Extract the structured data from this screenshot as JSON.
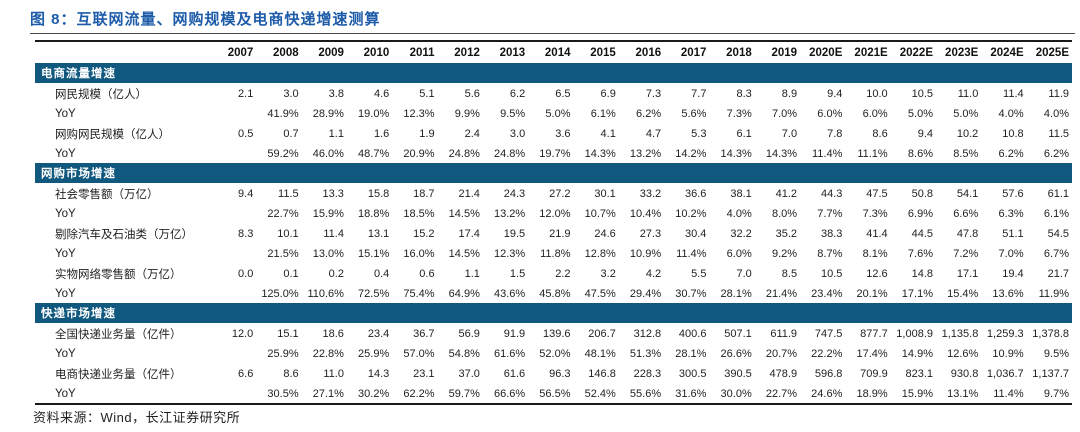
{
  "title": "图 8：互联网流量、网购规模及电商快递增速测算",
  "source": "资料来源：Wind，长江证券研究所",
  "colors": {
    "title_blue": "#1e5ca9",
    "section_band": "#11587f",
    "border": "#1a1a1a"
  },
  "chart_data": {
    "type": "table",
    "columns": [
      "2007",
      "2008",
      "2009",
      "2010",
      "2011",
      "2012",
      "2013",
      "2014",
      "2015",
      "2016",
      "2017",
      "2018",
      "2019",
      "2020E",
      "2021E",
      "2022E",
      "2023E",
      "2024E",
      "2025E"
    ],
    "sections": [
      {
        "name": "电商流量增速",
        "rows": [
          {
            "label": "网民规模（亿人）",
            "values": [
              "2.1",
              "3.0",
              "3.8",
              "4.6",
              "5.1",
              "5.6",
              "6.2",
              "6.5",
              "6.9",
              "7.3",
              "7.7",
              "8.3",
              "8.9",
              "9.4",
              "10.0",
              "10.5",
              "11.0",
              "11.4",
              "11.9"
            ]
          },
          {
            "label": "YoY",
            "values": [
              "",
              "41.9%",
              "28.9%",
              "19.0%",
              "12.3%",
              "9.9%",
              "9.5%",
              "5.0%",
              "6.1%",
              "6.2%",
              "5.6%",
              "7.3%",
              "7.0%",
              "6.0%",
              "6.0%",
              "5.0%",
              "5.0%",
              "4.0%",
              "4.0%"
            ]
          },
          {
            "label": "网购网民规模（亿人）",
            "values": [
              "0.5",
              "0.7",
              "1.1",
              "1.6",
              "1.9",
              "2.4",
              "3.0",
              "3.6",
              "4.1",
              "4.7",
              "5.3",
              "6.1",
              "7.0",
              "7.8",
              "8.6",
              "9.4",
              "10.2",
              "10.8",
              "11.5"
            ]
          },
          {
            "label": "YoY",
            "values": [
              "",
              "59.2%",
              "46.0%",
              "48.7%",
              "20.9%",
              "24.8%",
              "24.8%",
              "19.7%",
              "14.3%",
              "13.2%",
              "14.2%",
              "14.3%",
              "14.3%",
              "11.4%",
              "11.1%",
              "8.6%",
              "8.5%",
              "6.2%",
              "6.2%"
            ]
          }
        ]
      },
      {
        "name": "网购市场增速",
        "rows": [
          {
            "label": "社会零售额（万亿）",
            "values": [
              "9.4",
              "11.5",
              "13.3",
              "15.8",
              "18.7",
              "21.4",
              "24.3",
              "27.2",
              "30.1",
              "33.2",
              "36.6",
              "38.1",
              "41.2",
              "44.3",
              "47.5",
              "50.8",
              "54.1",
              "57.6",
              "61.1"
            ]
          },
          {
            "label": "YoY",
            "values": [
              "",
              "22.7%",
              "15.9%",
              "18.8%",
              "18.5%",
              "14.5%",
              "13.2%",
              "12.0%",
              "10.7%",
              "10.4%",
              "10.2%",
              "4.0%",
              "8.0%",
              "7.7%",
              "7.3%",
              "6.9%",
              "6.6%",
              "6.3%",
              "6.1%"
            ]
          },
          {
            "label": "剔除汽车及石油类（万亿）",
            "values": [
              "8.3",
              "10.1",
              "11.4",
              "13.1",
              "15.2",
              "17.4",
              "19.5",
              "21.9",
              "24.6",
              "27.3",
              "30.4",
              "32.2",
              "35.2",
              "38.3",
              "41.4",
              "44.5",
              "47.8",
              "51.1",
              "54.5"
            ]
          },
          {
            "label": "YoY",
            "values": [
              "",
              "21.5%",
              "13.0%",
              "15.1%",
              "16.0%",
              "14.5%",
              "12.3%",
              "11.8%",
              "12.8%",
              "10.9%",
              "11.4%",
              "6.0%",
              "9.2%",
              "8.7%",
              "8.1%",
              "7.6%",
              "7.2%",
              "7.0%",
              "6.7%"
            ]
          },
          {
            "label": "实物网络零售额（万亿）",
            "values": [
              "0.0",
              "0.1",
              "0.2",
              "0.4",
              "0.6",
              "1.1",
              "1.5",
              "2.2",
              "3.2",
              "4.2",
              "5.5",
              "7.0",
              "8.5",
              "10.5",
              "12.6",
              "14.8",
              "17.1",
              "19.4",
              "21.7"
            ]
          },
          {
            "label": "YoY",
            "values": [
              "",
              "125.0%",
              "110.6%",
              "72.5%",
              "75.4%",
              "64.9%",
              "43.6%",
              "45.8%",
              "47.5%",
              "29.4%",
              "30.7%",
              "28.1%",
              "21.4%",
              "23.4%",
              "20.1%",
              "17.1%",
              "15.4%",
              "13.6%",
              "11.9%"
            ]
          }
        ]
      },
      {
        "name": "快递市场增速",
        "rows": [
          {
            "label": "全国快递业务量（亿件）",
            "values": [
              "12.0",
              "15.1",
              "18.6",
              "23.4",
              "36.7",
              "56.9",
              "91.9",
              "139.6",
              "206.7",
              "312.8",
              "400.6",
              "507.1",
              "611.9",
              "747.5",
              "877.7",
              "1,008.9",
              "1,135.8",
              "1,259.3",
              "1,378.8"
            ]
          },
          {
            "label": "YoY",
            "values": [
              "",
              "25.9%",
              "22.8%",
              "25.9%",
              "57.0%",
              "54.8%",
              "61.6%",
              "52.0%",
              "48.1%",
              "51.3%",
              "28.1%",
              "26.6%",
              "20.7%",
              "22.2%",
              "17.4%",
              "14.9%",
              "12.6%",
              "10.9%",
              "9.5%"
            ]
          },
          {
            "label": "电商快递业务量（亿件）",
            "values": [
              "6.6",
              "8.6",
              "11.0",
              "14.3",
              "23.1",
              "37.0",
              "61.6",
              "96.3",
              "146.8",
              "228.3",
              "300.5",
              "390.5",
              "478.9",
              "596.8",
              "709.9",
              "823.1",
              "930.8",
              "1,036.7",
              "1,137.7"
            ]
          },
          {
            "label": "YoY",
            "values": [
              "",
              "30.5%",
              "27.1%",
              "30.2%",
              "62.2%",
              "59.7%",
              "66.6%",
              "56.5%",
              "52.4%",
              "55.6%",
              "31.6%",
              "30.0%",
              "22.7%",
              "24.6%",
              "18.9%",
              "15.9%",
              "13.1%",
              "11.4%",
              "9.7%"
            ]
          }
        ]
      }
    ]
  }
}
